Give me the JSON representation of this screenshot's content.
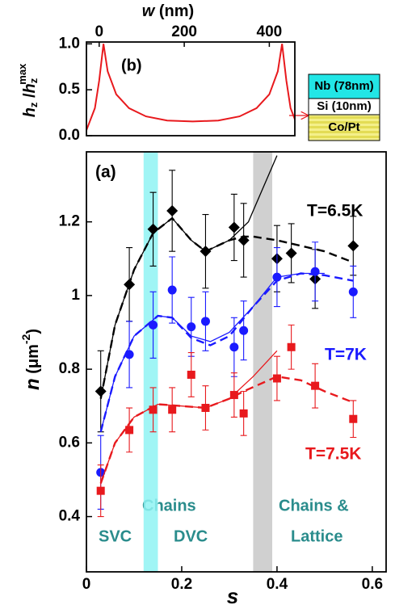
{
  "chart_data": [
    {
      "type": "line",
      "panel_label": "(b)",
      "x_label": {
        "var": "w",
        "unit": " (nm)"
      },
      "y_label": {
        "h1": "h",
        "s1": "z",
        "slash": " /",
        "h2": "h",
        "s2": "z",
        "sup": "max"
      },
      "xlim": [
        -30,
        460
      ],
      "xticks": [
        0,
        200,
        400
      ],
      "ylim": [
        0,
        1.02
      ],
      "yticks": [
        {
          "value": 0,
          "label": "0.0"
        },
        {
          "value": 0.5,
          "label": "0.5"
        },
        {
          "value": 1,
          "label": "1.0"
        }
      ],
      "x": [
        -35,
        -10,
        0,
        10,
        20,
        40,
        70,
        110,
        160,
        220,
        280,
        330,
        370,
        400,
        420,
        430,
        440,
        450,
        475
      ],
      "series": [
        {
          "color": "#e8191d",
          "values": [
            0.0,
            0.3,
            0.6,
            1.0,
            0.7,
            0.45,
            0.3,
            0.21,
            0.165,
            0.155,
            0.165,
            0.21,
            0.3,
            0.45,
            0.7,
            1.0,
            0.6,
            0.3,
            0.0
          ]
        }
      ],
      "stack": [
        "Nb (78nm)",
        "Si (10nm)",
        "Co/Pt"
      ]
    },
    {
      "type": "scatter",
      "panel_label": "(a)",
      "x_label": "s",
      "y_label": {
        "var": "n",
        "unit": " (μm",
        "sup": "-2",
        "close": ")"
      },
      "xlim": [
        0,
        0.629
      ],
      "xticks": [
        0,
        0.2,
        0.4,
        0.6
      ],
      "ylim": [
        0.25,
        1.39
      ],
      "yticks": [
        0.4,
        0.6,
        0.8,
        1.0,
        1.2
      ],
      "bands": [
        {
          "from": 0.12,
          "to": 0.15,
          "color": "#8ff3f3"
        },
        {
          "from": 0.35,
          "to": 0.39,
          "color": "#c8c8c8"
        }
      ],
      "annotations": [
        "Chains",
        "SVC",
        "DVC",
        "Chains &",
        "Lattice"
      ],
      "series": [
        {
          "name": "T=6.5K",
          "color": "#000000",
          "marker": "diamond",
          "x": [
            0.03,
            0.09,
            0.14,
            0.18,
            0.25,
            0.31,
            0.33,
            0.4,
            0.43,
            0.48,
            0.56
          ],
          "values": [
            0.74,
            1.03,
            1.18,
            1.23,
            1.12,
            1.185,
            1.15,
            1.1,
            1.115,
            1.045,
            1.135
          ],
          "errors": [
            0.11,
            0.1,
            0.1,
            0.11,
            0.1,
            0.09,
            0.1,
            0.09,
            0.08,
            0.08,
            0.08
          ],
          "fit_x": [
            0.03,
            0.06,
            0.1,
            0.14,
            0.18,
            0.22,
            0.25,
            0.3,
            0.34,
            0.4
          ],
          "fit": [
            0.72,
            0.92,
            1.07,
            1.17,
            1.21,
            1.15,
            1.12,
            1.15,
            1.2,
            1.38
          ],
          "dash_x": [
            0.03,
            0.06,
            0.1,
            0.14,
            0.18,
            0.22,
            0.25,
            0.3,
            0.33,
            0.35,
            0.4,
            0.5,
            0.56
          ],
          "dash": [
            0.72,
            0.92,
            1.07,
            1.17,
            1.21,
            1.15,
            1.12,
            1.15,
            1.16,
            1.16,
            1.15,
            1.12,
            1.09
          ]
        },
        {
          "name": "T=7K",
          "color": "#1a1aff",
          "marker": "circle",
          "x": [
            0.03,
            0.09,
            0.14,
            0.18,
            0.22,
            0.25,
            0.31,
            0.33,
            0.4,
            0.48,
            0.56
          ],
          "values": [
            0.52,
            0.84,
            0.92,
            1.015,
            0.915,
            0.93,
            0.86,
            0.905,
            1.05,
            1.065,
            1.01
          ],
          "errors": [
            0.1,
            0.09,
            0.09,
            0.09,
            0.08,
            0.08,
            0.08,
            0.08,
            0.08,
            0.08,
            0.07
          ],
          "fit_x": [
            0.03,
            0.06,
            0.1,
            0.15,
            0.18,
            0.22,
            0.26,
            0.3,
            0.35,
            0.4,
            0.45,
            0.5
          ],
          "fit": [
            0.63,
            0.78,
            0.89,
            0.945,
            0.94,
            0.89,
            0.875,
            0.9,
            0.97,
            1.05,
            1.06,
            1.06
          ],
          "dash_x": [
            0.03,
            0.06,
            0.1,
            0.15,
            0.18,
            0.22,
            0.26,
            0.3,
            0.35,
            0.4,
            0.45,
            0.5,
            0.56
          ],
          "dash": [
            0.63,
            0.78,
            0.89,
            0.945,
            0.94,
            0.885,
            0.865,
            0.89,
            0.97,
            1.04,
            1.06,
            1.055,
            1.04
          ]
        },
        {
          "name": "T=7.5K",
          "color": "#e8191d",
          "marker": "square",
          "x": [
            0.03,
            0.09,
            0.14,
            0.18,
            0.22,
            0.25,
            0.31,
            0.33,
            0.4,
            0.43,
            0.48,
            0.56
          ],
          "values": [
            0.47,
            0.635,
            0.69,
            0.69,
            0.785,
            0.695,
            0.73,
            0.68,
            0.775,
            0.86,
            0.755,
            0.665
          ],
          "errors": [
            0.07,
            0.06,
            0.06,
            0.06,
            0.06,
            0.06,
            0.06,
            0.06,
            0.06,
            0.06,
            0.06,
            0.05
          ],
          "fit_x": [
            0.03,
            0.06,
            0.1,
            0.15,
            0.2,
            0.25,
            0.3,
            0.35,
            0.4
          ],
          "fit": [
            0.49,
            0.6,
            0.67,
            0.705,
            0.7,
            0.695,
            0.72,
            0.78,
            0.85
          ],
          "dash_x": [
            0.03,
            0.06,
            0.1,
            0.15,
            0.2,
            0.25,
            0.3,
            0.33,
            0.4,
            0.45,
            0.5,
            0.56
          ],
          "dash": [
            0.49,
            0.6,
            0.67,
            0.705,
            0.7,
            0.695,
            0.72,
            0.74,
            0.78,
            0.77,
            0.74,
            0.71
          ]
        }
      ]
    }
  ]
}
